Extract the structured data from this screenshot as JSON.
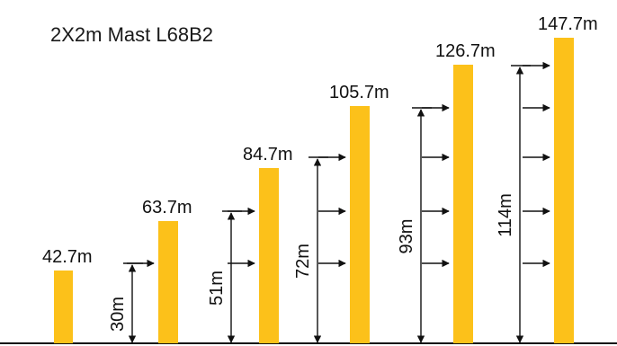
{
  "title": "2X2m Mast L68B2",
  "colors": {
    "mast": "#FCC11A",
    "ink": "#111111"
  },
  "masts": [
    {
      "height_label": "42.7m"
    },
    {
      "height_label": "63.7m",
      "tie_label": "30m"
    },
    {
      "height_label": "84.7m",
      "tie_label": "51m"
    },
    {
      "height_label": "105.7m",
      "tie_label": "72m"
    },
    {
      "height_label": "126.7m",
      "tie_label": "93m"
    },
    {
      "height_label": "147.7m",
      "tie_label": "114m"
    }
  ]
}
